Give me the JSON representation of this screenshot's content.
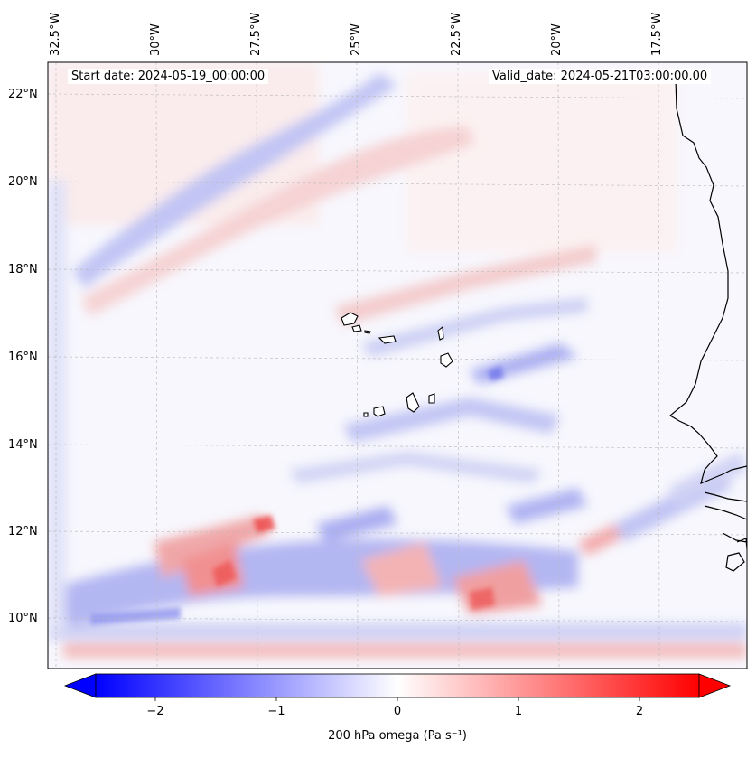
{
  "header": {
    "start_date": "Start date: 2024-05-19_00:00:00",
    "valid_date": "Valid_date: 2024-05-21T03:00:00.00"
  },
  "map": {
    "lon_labels": [
      "32.5°W",
      "30°W",
      "27.5°W",
      "25°W",
      "22.5°W",
      "20°W",
      "17.5°W"
    ],
    "lat_labels": [
      "22°N",
      "20°N",
      "18°N",
      "16°N",
      "14°N",
      "12°N",
      "10°N"
    ],
    "gridlines": true,
    "coastline_color": "#000000"
  },
  "colorbar": {
    "label": "200 hPa omega (Pa s⁻¹)",
    "ticks": [
      "−2",
      "−1",
      "0",
      "1",
      "2"
    ],
    "tick_values": [
      -2,
      -1,
      0,
      1,
      2
    ],
    "range": [
      -2.6,
      2.6
    ],
    "colormap": "bwr",
    "min_color": "#0000ff",
    "mid_color": "#ffffff",
    "max_color": "#ff0000"
  }
}
